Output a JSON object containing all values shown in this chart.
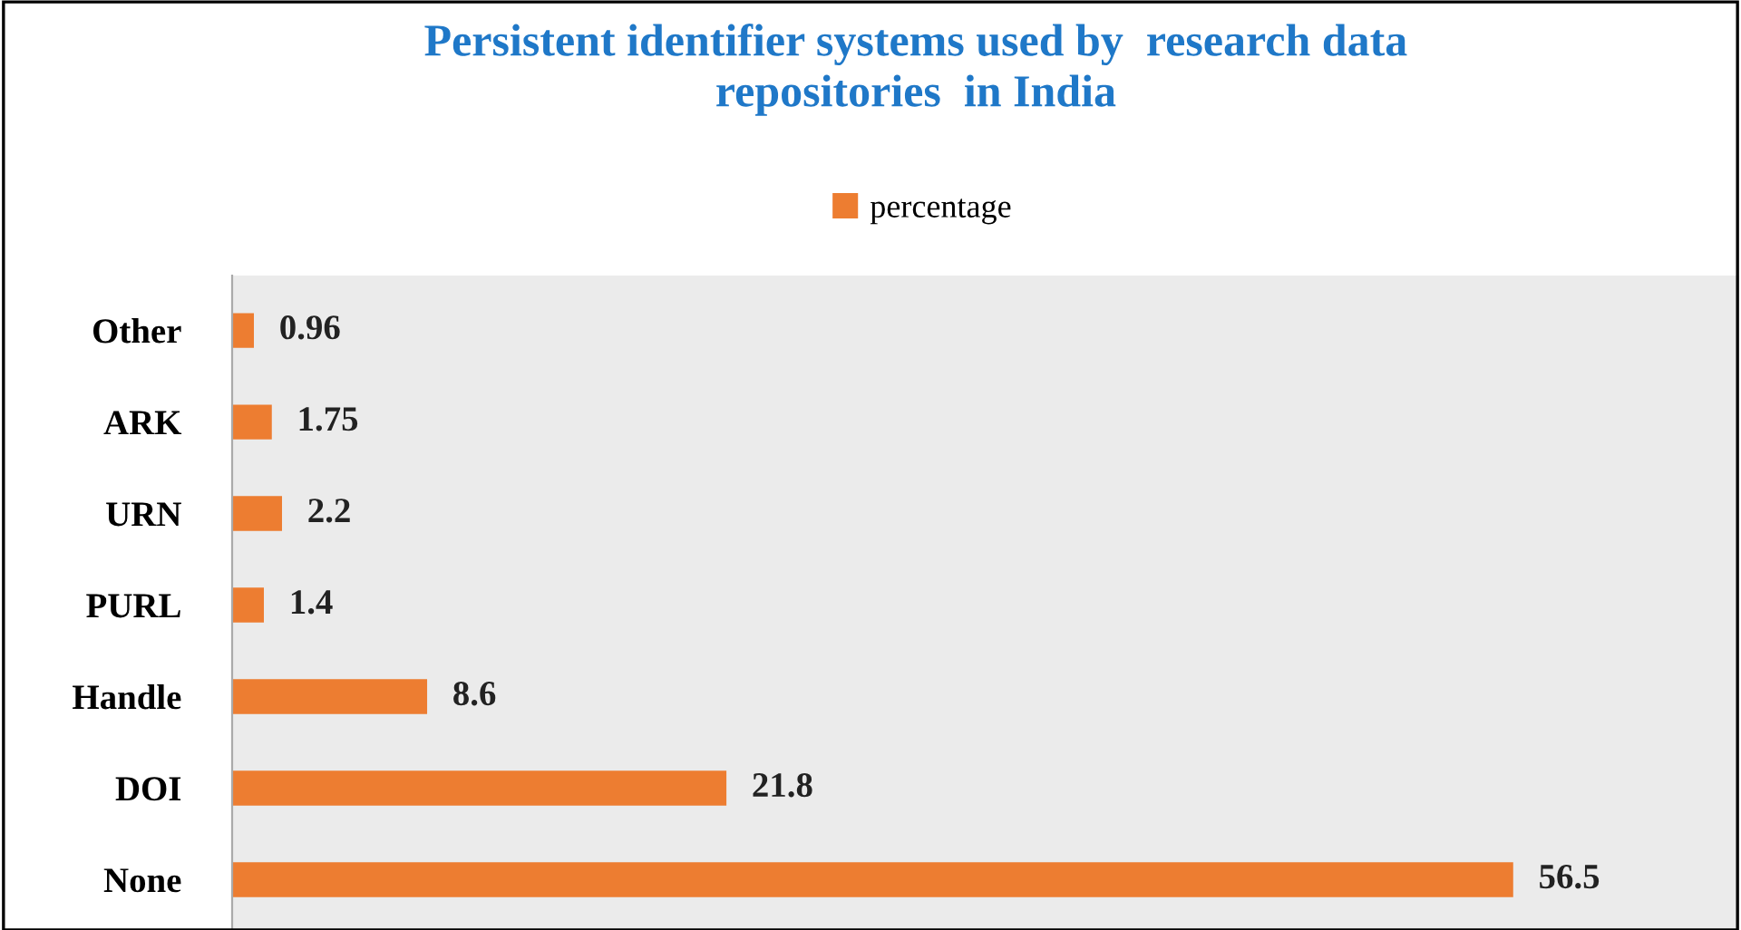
{
  "chart_data": {
    "type": "bar",
    "orientation": "horizontal",
    "title": "Persistent identifier systems used by  research data\nrepositories  in India",
    "categories": [
      "Other",
      "ARK",
      "URN",
      "PURL",
      "Handle",
      "DOI",
      "None"
    ],
    "series": [
      {
        "name": "percentage",
        "color": "#ed7d31",
        "values": [
          0.96,
          1.75,
          2.2,
          1.4,
          8.6,
          21.8,
          56.5
        ]
      }
    ],
    "data_labels": true,
    "legend": "top",
    "grid": false
  }
}
